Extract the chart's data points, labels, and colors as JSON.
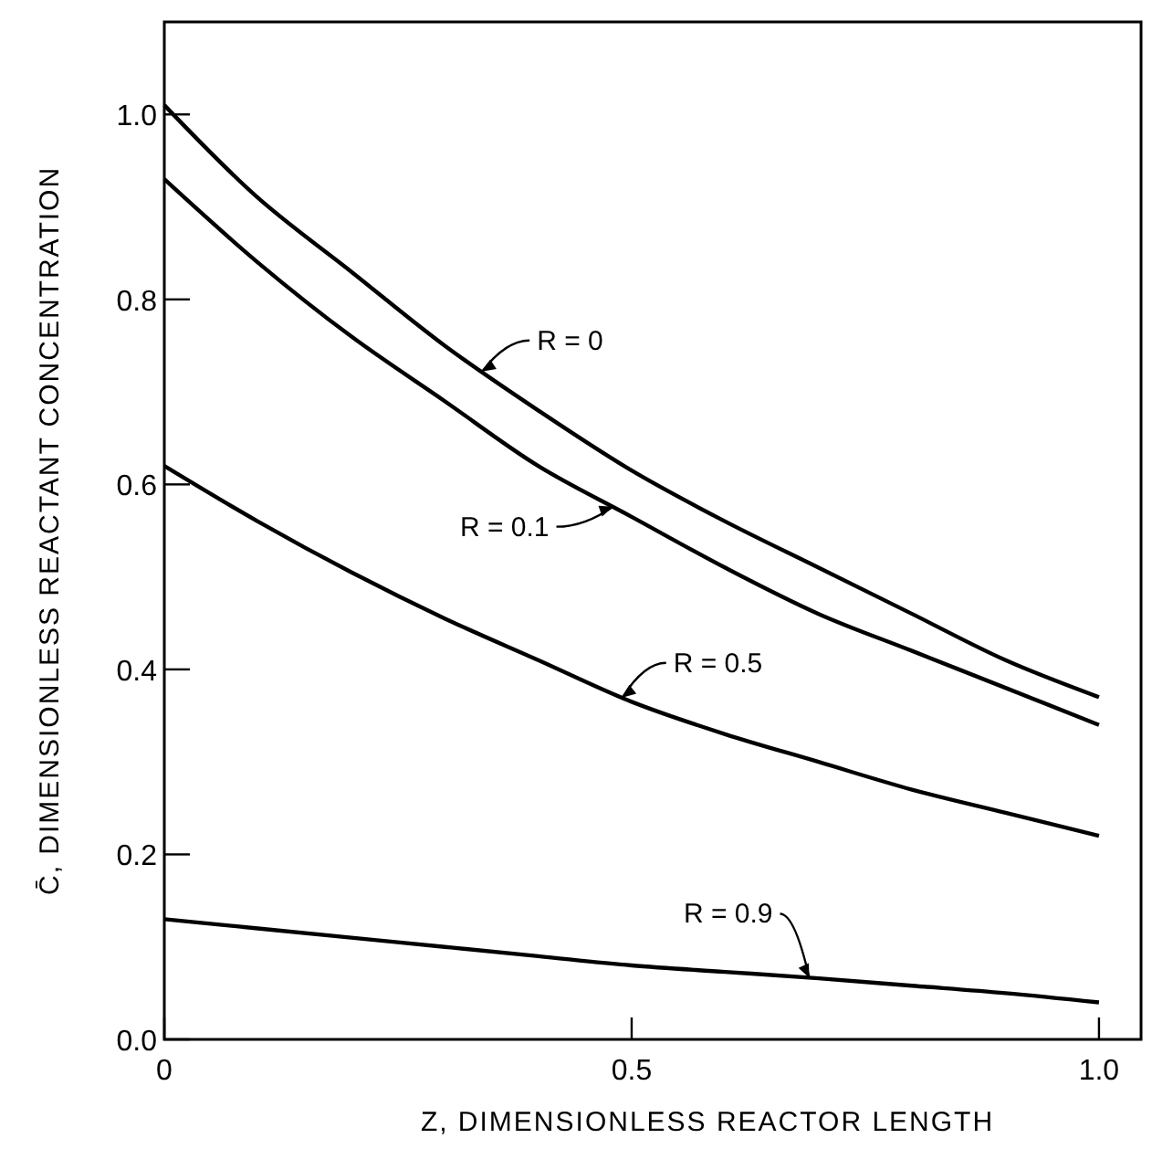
{
  "chart_data": {
    "type": "line",
    "xlabel": "Z, DIMENSIONLESS REACTOR LENGTH",
    "ylabel": "C̄, DIMENSIONLESS REACTANT CONCENTRATION",
    "x": [
      0,
      0.1,
      0.2,
      0.3,
      0.4,
      0.5,
      0.6,
      0.7,
      0.8,
      0.9,
      1.0
    ],
    "series": [
      {
        "name": "R = 0",
        "color": "#000000",
        "values": [
          1.01,
          0.91,
          0.83,
          0.75,
          0.68,
          0.615,
          0.56,
          0.51,
          0.46,
          0.41,
          0.37
        ]
      },
      {
        "name": "R = 0.1",
        "color": "#000000",
        "values": [
          0.93,
          0.84,
          0.76,
          0.69,
          0.62,
          0.565,
          0.51,
          0.46,
          0.42,
          0.38,
          0.34
        ]
      },
      {
        "name": "R = 0.5",
        "color": "#000000",
        "values": [
          0.62,
          0.56,
          0.505,
          0.455,
          0.41,
          0.365,
          0.33,
          0.3,
          0.27,
          0.245,
          0.22
        ]
      },
      {
        "name": "R = 0.9",
        "color": "#000000",
        "values": [
          0.13,
          0.12,
          0.11,
          0.1,
          0.09,
          0.08,
          0.073,
          0.066,
          0.058,
          0.05,
          0.04
        ]
      }
    ],
    "xlim": [
      0,
      1.045
    ],
    "ylim": [
      0,
      1.1
    ],
    "xticks": [
      {
        "value": 0,
        "label": "0"
      },
      0.5,
      {
        "value": 1.0,
        "label": "1.0"
      }
    ],
    "yticks": [
      {
        "value": 0,
        "label": "0.0"
      },
      0.2,
      0.4,
      0.6,
      0.8,
      {
        "value": 1.0,
        "label": "1.0"
      }
    ],
    "grid": false,
    "legend": "center",
    "marker": "none",
    "line_style": "solid"
  }
}
